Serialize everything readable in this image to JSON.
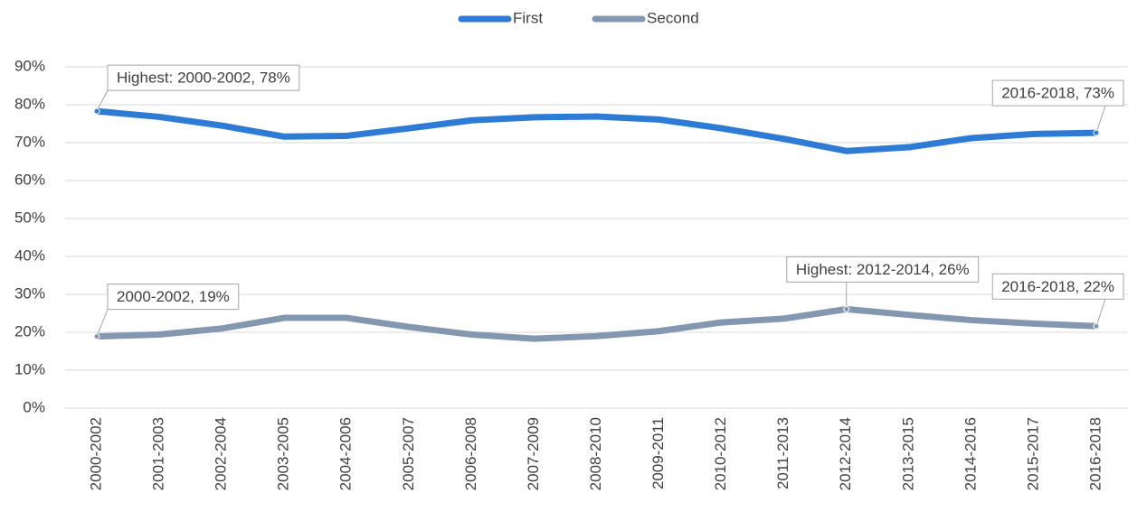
{
  "chart_data": {
    "type": "line",
    "categories": [
      "2000-2002",
      "2001-2003",
      "2002-2004",
      "2003-2005",
      "2004-2006",
      "2005-2007",
      "2006-2008",
      "2007-2009",
      "2008-2010",
      "2009-2011",
      "2010-2012",
      "2011-2013",
      "2012-2014",
      "2013-2015",
      "2014-2016",
      "2015-2017",
      "2016-2018"
    ],
    "series": [
      {
        "name": "First",
        "color": "#2e7bd6",
        "values": [
          78.3,
          76.8,
          74.5,
          71.6,
          71.8,
          73.8,
          75.9,
          76.7,
          76.9,
          76.1,
          73.8,
          71.0,
          67.8,
          68.8,
          71.2,
          72.3,
          72.6
        ],
        "value_labels": [
          "Highest: 2000-2002, 78%",
          null,
          null,
          null,
          null,
          null,
          null,
          null,
          null,
          null,
          null,
          null,
          null,
          null,
          null,
          null,
          "2016-2018, 73%"
        ]
      },
      {
        "name": "Second",
        "color": "#8497b0",
        "values": [
          18.9,
          19.4,
          21.0,
          23.8,
          23.8,
          21.4,
          19.4,
          18.3,
          19.0,
          20.3,
          22.6,
          23.6,
          26.1,
          24.6,
          23.2,
          22.3,
          21.6
        ],
        "value_labels": [
          "2000-2002, 19%",
          null,
          null,
          null,
          null,
          null,
          null,
          null,
          null,
          null,
          null,
          null,
          "Highest: 2012-2014, 26%",
          null,
          null,
          null,
          "2016-2018, 22%"
        ]
      }
    ],
    "ylim": [
      0,
      90
    ],
    "yticks": [
      {
        "value": 0,
        "label": "0%"
      },
      {
        "value": 10,
        "label": "10%"
      },
      {
        "value": 20,
        "label": "20%"
      },
      {
        "value": 30,
        "label": "30%"
      },
      {
        "value": 40,
        "label": "40%"
      },
      {
        "value": 50,
        "label": "50%"
      },
      {
        "value": 60,
        "label": "60%"
      },
      {
        "value": 70,
        "label": "70%"
      },
      {
        "value": 80,
        "label": "80%"
      },
      {
        "value": 90,
        "label": "90%"
      }
    ],
    "grid": true,
    "legend": "top"
  }
}
